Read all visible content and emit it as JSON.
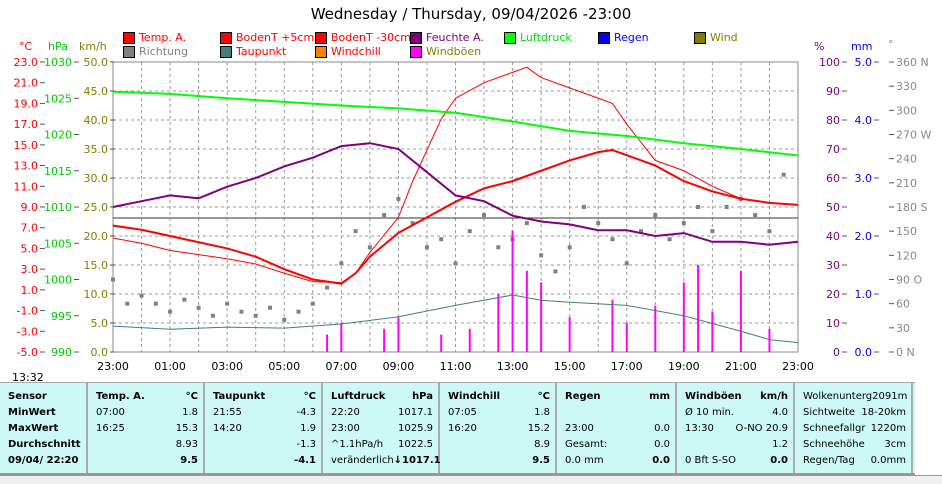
{
  "title": "Wednesday / Thursday, 09/04/2026  -23:00",
  "legend": [
    {
      "label": "Temp. A.",
      "color": "#ff0000",
      "text": "#ff0000"
    },
    {
      "label": "BodenT +5cm",
      "color": "#ff0000",
      "text": "#ff0000"
    },
    {
      "label": "BodenT -30cm",
      "color": "#ff0000",
      "text": "#ff0000"
    },
    {
      "label": "Feuchte A.",
      "color": "#800080",
      "text": "#800080"
    },
    {
      "label": "Luftdruck",
      "color": "#00ff00",
      "text": "#00dd00"
    },
    {
      "label": "Regen",
      "color": "#0000ff",
      "text": "#0000ff"
    },
    {
      "label": "Wind",
      "color": "#808000",
      "text": "#808000"
    },
    {
      "label": "Richtung",
      "color": "#808080",
      "text": "#808080"
    },
    {
      "label": "Taupunkt",
      "color": "#408080",
      "text": "#ff0000"
    },
    {
      "label": "Windchill",
      "color": "#ff8000",
      "text": "#ff0000"
    },
    {
      "label": "Windböen",
      "color": "#ff00ff",
      "text": "#808000"
    }
  ],
  "axis_units": {
    "c": "°C",
    "hpa": "hPa",
    "kmh": "km/h",
    "pct": "%",
    "mm": "mm",
    "deg": "°"
  },
  "clock": "13:32",
  "chart_data": {
    "type": "line",
    "title": "Wednesday / Thursday, 09/04/2026  -23:00",
    "x_ticks": [
      "23:00",
      "01:00",
      "03:00",
      "05:00",
      "07:00",
      "09:00",
      "11:00",
      "13:00",
      "15:00",
      "17:00",
      "19:00",
      "21:00",
      "23:00"
    ],
    "x_range_hours": [
      0,
      24
    ],
    "axes": {
      "temp_c": {
        "range": [
          -5,
          23
        ],
        "ticks": [
          "23.0",
          "21.0",
          "19.0",
          "17.0",
          "15.0",
          "13.0",
          "11.0",
          "9.0",
          "7.0",
          "5.0",
          "3.0",
          "1.0",
          "-1.0",
          "-3.0",
          "-5.0"
        ]
      },
      "pressure_hpa": {
        "range": [
          990,
          1030
        ],
        "ticks": [
          "1030",
          "1025",
          "1020",
          "1015",
          "1010",
          "1005",
          "1000",
          "995",
          "990"
        ]
      },
      "wind_kmh": {
        "range": [
          0,
          50
        ],
        "ticks": [
          "50.0",
          "45.0",
          "40.0",
          "35.0",
          "30.0",
          "25.0",
          "20.0",
          "15.0",
          "10.0",
          "5.0",
          "0.0"
        ]
      },
      "humidity_pct": {
        "range": [
          0,
          100
        ],
        "ticks": [
          "100",
          "90",
          "80",
          "70",
          "60",
          "50",
          "40",
          "30",
          "20",
          "10",
          "0"
        ]
      },
      "rain_mm": {
        "range": [
          0,
          5
        ],
        "ticks": [
          "5.0",
          "4.0",
          "3.0",
          "2.0",
          "1.0",
          "0.0"
        ]
      },
      "direction_deg": {
        "range": [
          0,
          360
        ],
        "ticks": [
          "360 N",
          "330",
          "300",
          "270 W",
          "240",
          "210",
          "180 S",
          "150",
          "120",
          "90 O",
          "60",
          "30",
          "0  N"
        ]
      }
    },
    "series": [
      {
        "name": "Temp. A.",
        "axis": "temp_c",
        "color": "#ff0000",
        "width": 2,
        "points": [
          [
            0,
            7.2
          ],
          [
            1,
            6.8
          ],
          [
            2,
            6.2
          ],
          [
            3,
            5.6
          ],
          [
            4,
            5.0
          ],
          [
            5,
            4.2
          ],
          [
            6,
            3.0
          ],
          [
            7,
            2.0
          ],
          [
            8,
            1.6
          ],
          [
            8.5,
            2.6
          ],
          [
            9,
            4.2
          ],
          [
            10,
            6.5
          ],
          [
            11,
            8.0
          ],
          [
            12,
            9.5
          ],
          [
            13,
            10.8
          ],
          [
            14,
            11.5
          ],
          [
            15,
            12.5
          ],
          [
            16,
            13.5
          ],
          [
            17,
            14.3
          ],
          [
            17.5,
            14.5
          ],
          [
            18,
            14.0
          ],
          [
            19,
            13.0
          ],
          [
            20,
            11.5
          ],
          [
            21,
            10.5
          ],
          [
            22,
            9.8
          ],
          [
            23,
            9.4
          ],
          [
            24,
            9.2
          ]
        ]
      },
      {
        "name": "BodenT +5cm",
        "axis": "temp_c",
        "color": "#ff0000",
        "width": 1,
        "points": [
          [
            0,
            6.0
          ],
          [
            1,
            5.5
          ],
          [
            2,
            4.8
          ],
          [
            3,
            4.4
          ],
          [
            4,
            4.0
          ],
          [
            5,
            3.5
          ],
          [
            6,
            2.6
          ],
          [
            7,
            1.8
          ],
          [
            8,
            1.7
          ],
          [
            8.5,
            2.6
          ],
          [
            9,
            4.6
          ],
          [
            10,
            8.0
          ],
          [
            10.5,
            11.5
          ],
          [
            11,
            14.5
          ],
          [
            11.5,
            17.5
          ],
          [
            12,
            19.5
          ],
          [
            13,
            21.0
          ],
          [
            14,
            22.0
          ],
          [
            14.5,
            22.5
          ],
          [
            15,
            21.5
          ],
          [
            16,
            20.5
          ],
          [
            17,
            19.5
          ],
          [
            17.5,
            19.0
          ],
          [
            18,
            17.0
          ],
          [
            19,
            13.5
          ],
          [
            20,
            12.5
          ],
          [
            21,
            11.0
          ],
          [
            22,
            9.8
          ],
          [
            23,
            9.4
          ],
          [
            24,
            9.2
          ]
        ]
      },
      {
        "name": "Feuchte A.",
        "axis": "humidity_pct",
        "color": "#800080",
        "width": 2,
        "points": [
          [
            0,
            50
          ],
          [
            1,
            52
          ],
          [
            2,
            54
          ],
          [
            3,
            53
          ],
          [
            4,
            57
          ],
          [
            5,
            60
          ],
          [
            6,
            64
          ],
          [
            7,
            67
          ],
          [
            8,
            71
          ],
          [
            9,
            72
          ],
          [
            10,
            70
          ],
          [
            11,
            62
          ],
          [
            12,
            54
          ],
          [
            13,
            52
          ],
          [
            14,
            47
          ],
          [
            15,
            45
          ],
          [
            16,
            44
          ],
          [
            17,
            42
          ],
          [
            18,
            42
          ],
          [
            19,
            40
          ],
          [
            20,
            41
          ],
          [
            21,
            38
          ],
          [
            22,
            38
          ],
          [
            23,
            37
          ],
          [
            24,
            38
          ]
        ]
      },
      {
        "name": "Luftdruck",
        "axis": "pressure_hpa",
        "color": "#00ff00",
        "width": 2,
        "points": [
          [
            0,
            1025.9
          ],
          [
            2,
            1025.6
          ],
          [
            4,
            1025.0
          ],
          [
            6,
            1024.5
          ],
          [
            8,
            1024.0
          ],
          [
            10,
            1023.6
          ],
          [
            12,
            1023.0
          ],
          [
            14,
            1021.8
          ],
          [
            16,
            1020.5
          ],
          [
            18,
            1019.8
          ],
          [
            20,
            1018.8
          ],
          [
            22,
            1018.0
          ],
          [
            24,
            1017.1
          ]
        ]
      },
      {
        "name": "Taupunkt",
        "axis": "temp_c",
        "color": "#408080",
        "width": 1,
        "points": [
          [
            0,
            -2.5
          ],
          [
            2,
            -2.8
          ],
          [
            4,
            -2.6
          ],
          [
            6,
            -2.7
          ],
          [
            8,
            -2.3
          ],
          [
            10,
            -1.6
          ],
          [
            12,
            -0.5
          ],
          [
            14,
            0.5
          ],
          [
            15,
            0.0
          ],
          [
            16,
            -0.2
          ],
          [
            18,
            -0.5
          ],
          [
            20,
            -1.5
          ],
          [
            22,
            -3.0
          ],
          [
            23,
            -3.8
          ],
          [
            24,
            -4.1
          ]
        ]
      }
    ],
    "gusts_kmh": {
      "color": "#ff00ff",
      "points": [
        [
          7.5,
          3
        ],
        [
          8,
          5
        ],
        [
          9.5,
          4
        ],
        [
          10,
          6
        ],
        [
          11.5,
          3
        ],
        [
          12.5,
          4
        ],
        [
          13.5,
          10
        ],
        [
          14,
          20.9
        ],
        [
          14.5,
          14
        ],
        [
          15,
          12
        ],
        [
          16,
          6
        ],
        [
          17.5,
          9
        ],
        [
          18,
          5
        ],
        [
          19,
          8
        ],
        [
          20,
          12
        ],
        [
          20.5,
          15
        ],
        [
          21,
          7
        ],
        [
          22,
          14
        ],
        [
          23,
          4
        ]
      ]
    },
    "direction_deg": {
      "color": "#808080",
      "points": [
        [
          0,
          90
        ],
        [
          0.5,
          60
        ],
        [
          1,
          70
        ],
        [
          1.5,
          60
        ],
        [
          2,
          50
        ],
        [
          2.5,
          65
        ],
        [
          3,
          55
        ],
        [
          3.5,
          45
        ],
        [
          4,
          60
        ],
        [
          4.5,
          50
        ],
        [
          5,
          45
        ],
        [
          5.5,
          55
        ],
        [
          6,
          40
        ],
        [
          6.5,
          50
        ],
        [
          7,
          60
        ],
        [
          7.5,
          80
        ],
        [
          8,
          110
        ],
        [
          8.5,
          150
        ],
        [
          9,
          130
        ],
        [
          9.5,
          170
        ],
        [
          10,
          190
        ],
        [
          10.5,
          160
        ],
        [
          11,
          130
        ],
        [
          11.5,
          140
        ],
        [
          12,
          110
        ],
        [
          12.5,
          150
        ],
        [
          13,
          170
        ],
        [
          13.5,
          130
        ],
        [
          14,
          140
        ],
        [
          14.5,
          160
        ],
        [
          15,
          120
        ],
        [
          15.5,
          100
        ],
        [
          16,
          130
        ],
        [
          16.5,
          180
        ],
        [
          17,
          160
        ],
        [
          17.5,
          140
        ],
        [
          18,
          110
        ],
        [
          18.5,
          150
        ],
        [
          19,
          170
        ],
        [
          19.5,
          140
        ],
        [
          20,
          160
        ],
        [
          20.5,
          180
        ],
        [
          21,
          150
        ],
        [
          21.5,
          180
        ],
        [
          22,
          190
        ],
        [
          22.5,
          170
        ],
        [
          23,
          150
        ],
        [
          23.5,
          220
        ]
      ]
    }
  },
  "table": {
    "cols": [
      {
        "rows": [
          [
            "Sensor",
            ""
          ],
          [
            "MinWert",
            ""
          ],
          [
            "MaxWert",
            ""
          ],
          [
            "Durchschnitt",
            ""
          ],
          [
            "09/04/ 22:20",
            ""
          ]
        ]
      },
      {
        "rows": [
          [
            "Temp. A.",
            "°C"
          ],
          [
            "07:00",
            "1.8"
          ],
          [
            "16:25",
            "15.3"
          ],
          [
            "",
            "8.93"
          ],
          [
            "",
            "9.5"
          ]
        ]
      },
      {
        "rows": [
          [
            "Taupunkt",
            "°C"
          ],
          [
            "21:55",
            "-4.3"
          ],
          [
            "14:20",
            "1.9"
          ],
          [
            "",
            "-1.3"
          ],
          [
            "",
            "-4.1"
          ]
        ]
      },
      {
        "rows": [
          [
            "Luftdruck",
            "hPa"
          ],
          [
            "22:20",
            "1017.1"
          ],
          [
            "23:00",
            "1025.9"
          ],
          [
            "^1.1hPa/h",
            "1022.5"
          ],
          [
            "veränderlich",
            "↓1017.1"
          ]
        ]
      },
      {
        "rows": [
          [
            "Windchill",
            "°C"
          ],
          [
            "07:05",
            "1.8"
          ],
          [
            "16:20",
            "15.2"
          ],
          [
            "",
            "8.9"
          ],
          [
            "",
            "9.5"
          ]
        ]
      },
      {
        "rows": [
          [
            "Regen",
            "mm"
          ],
          [
            "",
            ""
          ],
          [
            "23:00",
            "0.0"
          ],
          [
            "Gesamt:",
            "0.0"
          ],
          [
            "0.0 mm",
            "0.0"
          ]
        ]
      },
      {
        "rows": [
          [
            "Windböen",
            "km/h"
          ],
          [
            "Ø 10 min.",
            "4.0"
          ],
          [
            "13:30",
            "O-NO 20.9"
          ],
          [
            "",
            "1.2"
          ],
          [
            "0 Bft S-SO",
            "0.0"
          ]
        ]
      },
      {
        "rows": [
          [
            "Wolkenunterg",
            "2091m"
          ],
          [
            "Sichtweite",
            "18-20km"
          ],
          [
            "Schneefallgr",
            "1220m"
          ],
          [
            "Schneehöhe",
            "3cm"
          ],
          [
            "Regen/Tag",
            "0.0mm"
          ]
        ]
      }
    ]
  }
}
